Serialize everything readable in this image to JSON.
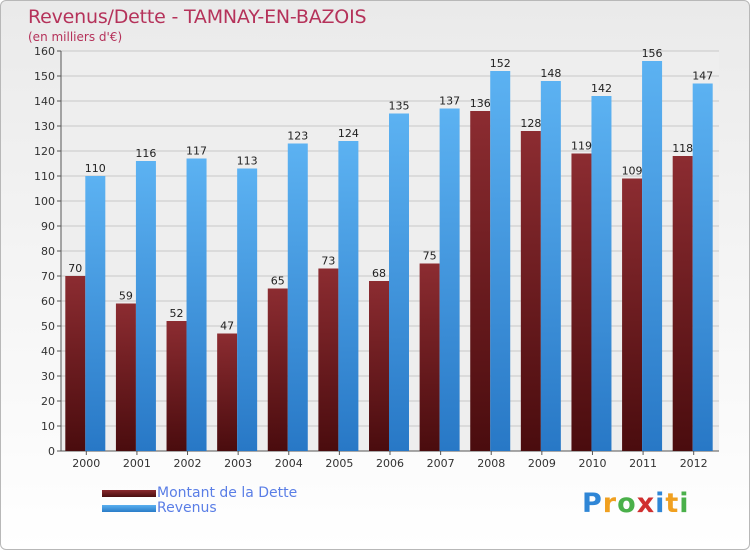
{
  "chart_data": {
    "type": "bar",
    "title": "Revenus/Dette - TAMNAY-EN-BAZOIS",
    "subtitle": "(en milliers d'€)",
    "categories": [
      "2000",
      "2001",
      "2002",
      "2003",
      "2004",
      "2005",
      "2006",
      "2007",
      "2008",
      "2009",
      "2010",
      "2011",
      "2012"
    ],
    "series": [
      {
        "name": "Montant de la Dette",
        "values": [
          70,
          59,
          52,
          47,
          65,
          73,
          68,
          75,
          136,
          128,
          119,
          109,
          118
        ],
        "color": "#7a1f22"
      },
      {
        "name": "Revenus",
        "values": [
          110,
          116,
          117,
          113,
          123,
          124,
          135,
          137,
          152,
          148,
          142,
          156,
          147
        ],
        "color": "#4aa0e6"
      }
    ],
    "yticks": [
      0,
      10,
      20,
      30,
      40,
      50,
      60,
      70,
      80,
      90,
      100,
      110,
      120,
      130,
      140,
      150,
      160
    ],
    "ylim": [
      0,
      160
    ],
    "grid": true,
    "legend_position": "bottom-left"
  },
  "logo": {
    "letters": [
      "P",
      "r",
      "o",
      "x",
      "i",
      "t",
      "i"
    ],
    "colors": [
      "#2f86d6",
      "#f0a020",
      "#4ab04a",
      "#d03030",
      "#2f86d6",
      "#f0a020",
      "#4ab04a"
    ]
  }
}
